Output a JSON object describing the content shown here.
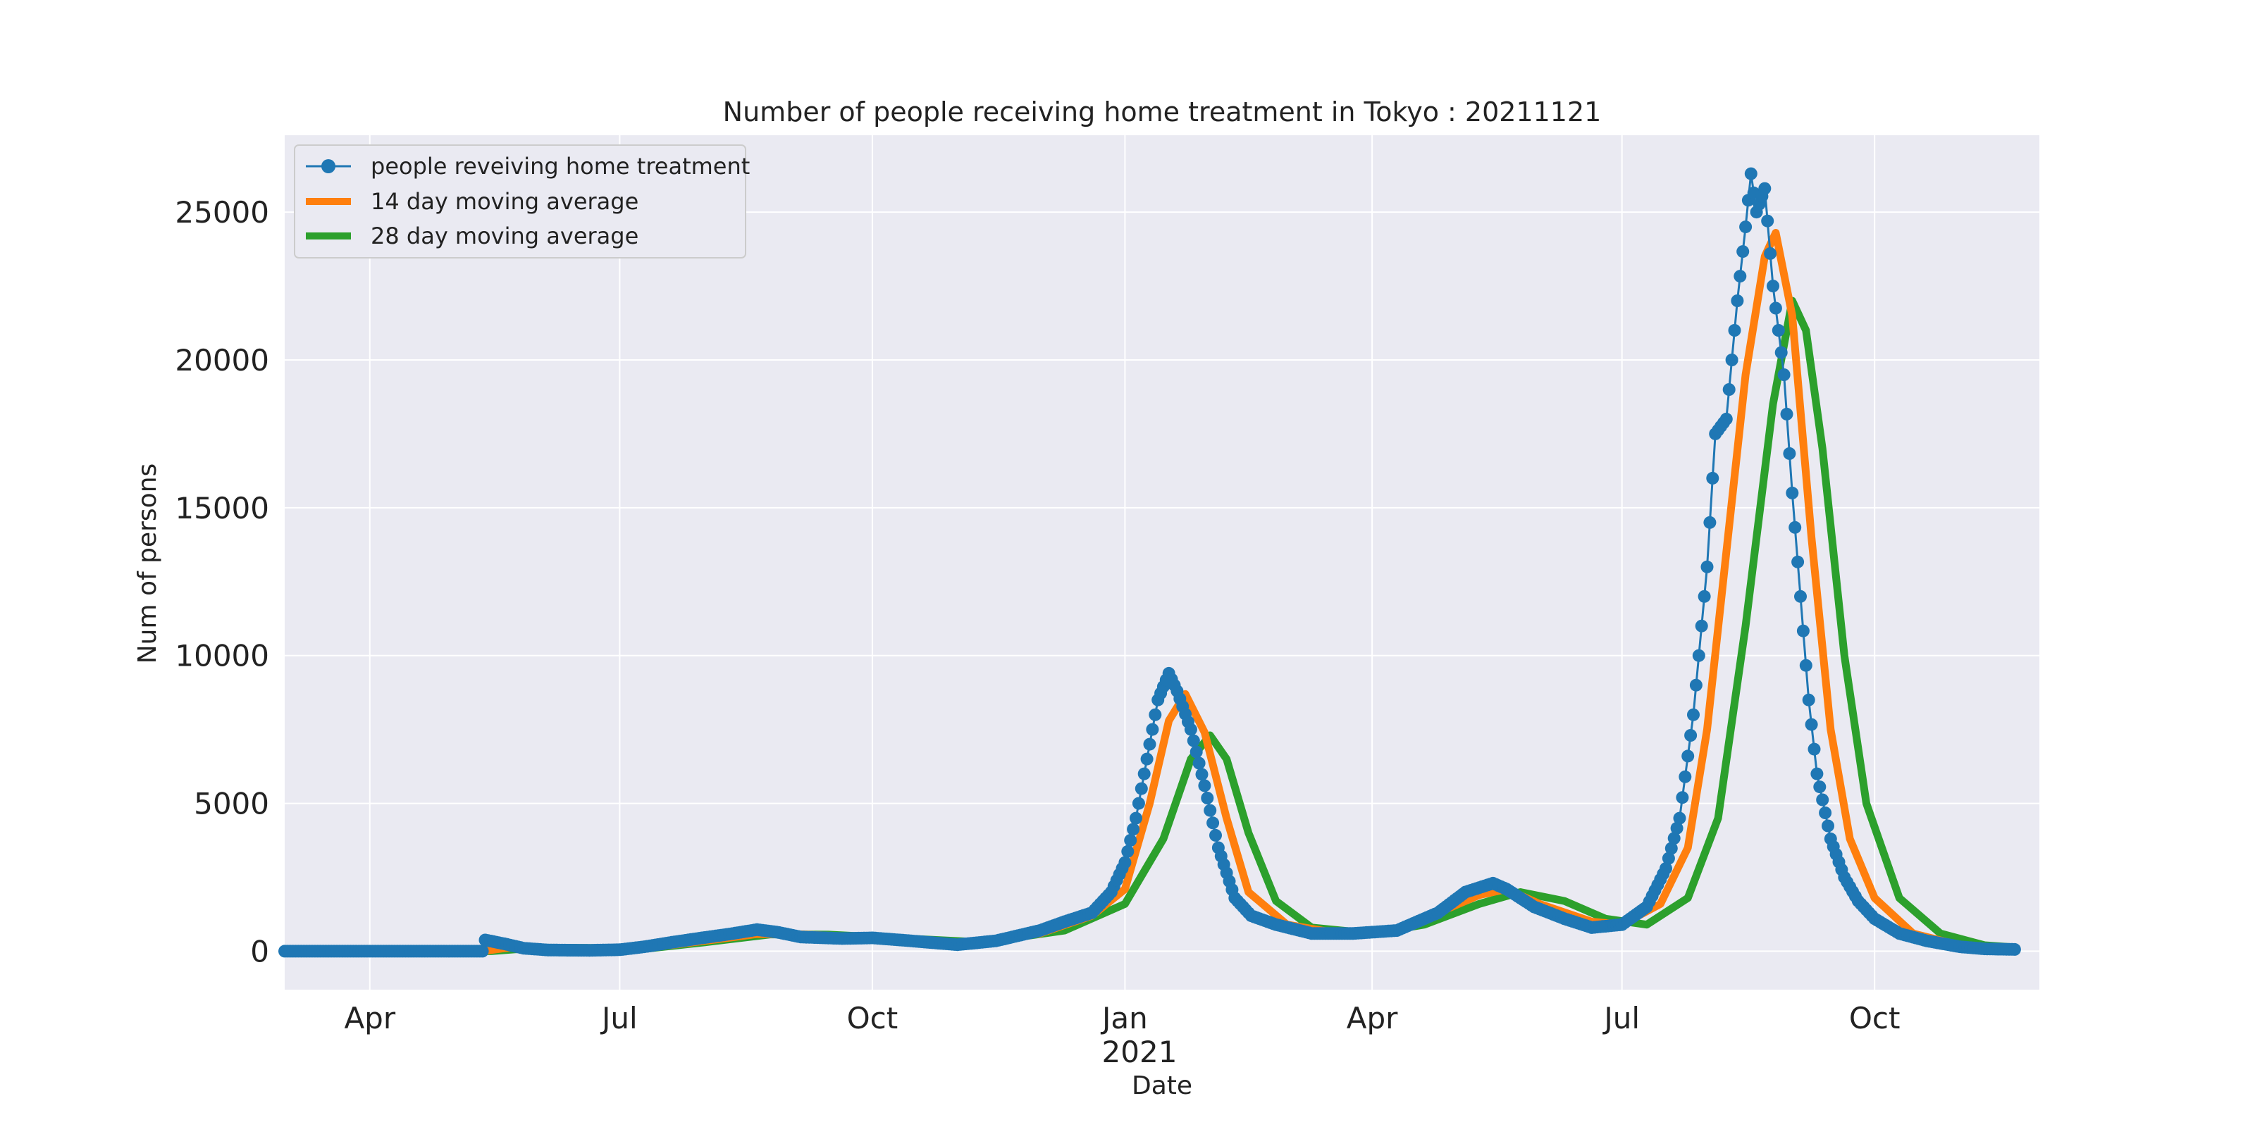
{
  "chart_data": {
    "type": "line",
    "title": "Number of people receiving home treatment in Tokyo : 20211121",
    "xlabel": "Date",
    "ylabel": "Num of persons",
    "x_range": [
      "2020-03-01",
      "2021-11-30"
    ],
    "ylim": [
      -1300,
      27600
    ],
    "grid": true,
    "legend_position": "top-left",
    "x_ticks": [
      {
        "date": "2020-04-01",
        "label": "Apr"
      },
      {
        "date": "2020-07-01",
        "label": "Jul"
      },
      {
        "date": "2020-10-01",
        "label": "Oct"
      },
      {
        "date": "2021-01-01",
        "label": "Jan"
      },
      {
        "date": "2021-04-01",
        "label": "Apr"
      },
      {
        "date": "2021-07-01",
        "label": "Jul"
      },
      {
        "date": "2021-10-01",
        "label": "Oct"
      }
    ],
    "x_year_label": "2021",
    "y_ticks": [
      0,
      5000,
      10000,
      15000,
      20000,
      25000
    ],
    "series": [
      {
        "name": "people reveiving home treatment",
        "color": "#1f77b4",
        "marker": "circle",
        "points": [
          [
            "2020-03-01",
            0
          ],
          [
            "2020-04-15",
            0
          ],
          [
            "2020-05-12",
            0
          ],
          [
            "2020-05-13",
            380
          ],
          [
            "2020-05-20",
            250
          ],
          [
            "2020-05-27",
            100
          ],
          [
            "2020-06-05",
            40
          ],
          [
            "2020-06-20",
            30
          ],
          [
            "2020-07-01",
            50
          ],
          [
            "2020-07-10",
            150
          ],
          [
            "2020-07-20",
            300
          ],
          [
            "2020-07-31",
            450
          ],
          [
            "2020-08-10",
            580
          ],
          [
            "2020-08-20",
            730
          ],
          [
            "2020-08-27",
            650
          ],
          [
            "2020-09-05",
            480
          ],
          [
            "2020-09-20",
            430
          ],
          [
            "2020-10-01",
            450
          ],
          [
            "2020-10-15",
            350
          ],
          [
            "2020-11-01",
            220
          ],
          [
            "2020-11-15",
            350
          ],
          [
            "2020-12-01",
            700
          ],
          [
            "2020-12-10",
            1000
          ],
          [
            "2020-12-20",
            1300
          ],
          [
            "2020-12-27",
            2000
          ],
          [
            "2021-01-01",
            3000
          ],
          [
            "2021-01-05",
            4500
          ],
          [
            "2021-01-09",
            6500
          ],
          [
            "2021-01-13",
            8500
          ],
          [
            "2021-01-17",
            9400
          ],
          [
            "2021-01-20",
            8800
          ],
          [
            "2021-01-25",
            7500
          ],
          [
            "2021-01-30",
            5600
          ],
          [
            "2021-02-04",
            3500
          ],
          [
            "2021-02-10",
            1800
          ],
          [
            "2021-02-16",
            1200
          ],
          [
            "2021-02-25",
            900
          ],
          [
            "2021-03-10",
            600
          ],
          [
            "2021-03-25",
            600
          ],
          [
            "2021-04-10",
            700
          ],
          [
            "2021-04-25",
            1300
          ],
          [
            "2021-05-05",
            2000
          ],
          [
            "2021-05-15",
            2300
          ],
          [
            "2021-05-20",
            2100
          ],
          [
            "2021-05-30",
            1500
          ],
          [
            "2021-06-10",
            1100
          ],
          [
            "2021-06-20",
            800
          ],
          [
            "2021-07-01",
            900
          ],
          [
            "2021-07-10",
            1500
          ],
          [
            "2021-07-17",
            2800
          ],
          [
            "2021-07-22",
            4500
          ],
          [
            "2021-07-27",
            8000
          ],
          [
            "2021-08-01",
            13000
          ],
          [
            "2021-08-04",
            17500
          ],
          [
            "2021-08-08",
            18000
          ],
          [
            "2021-08-12",
            22000
          ],
          [
            "2021-08-15",
            24500
          ],
          [
            "2021-08-17",
            26300
          ],
          [
            "2021-08-19",
            25000
          ],
          [
            "2021-08-22",
            25800
          ],
          [
            "2021-08-25",
            22500
          ],
          [
            "2021-08-29",
            19500
          ],
          [
            "2021-09-01",
            15500
          ],
          [
            "2021-09-04",
            12000
          ],
          [
            "2021-09-07",
            8500
          ],
          [
            "2021-09-10",
            6000
          ],
          [
            "2021-09-15",
            3800
          ],
          [
            "2021-09-20",
            2500
          ],
          [
            "2021-09-25",
            1700
          ],
          [
            "2021-10-01",
            1100
          ],
          [
            "2021-10-10",
            600
          ],
          [
            "2021-10-20",
            350
          ],
          [
            "2021-11-01",
            150
          ],
          [
            "2021-11-10",
            80
          ],
          [
            "2021-11-21",
            60
          ]
        ]
      },
      {
        "name": "14 day moving average",
        "color": "#ff7f0e",
        "points": [
          [
            "2020-03-14",
            0
          ],
          [
            "2020-05-12",
            0
          ],
          [
            "2020-05-20",
            100
          ],
          [
            "2020-05-27",
            160
          ],
          [
            "2020-06-10",
            90
          ],
          [
            "2020-07-01",
            40
          ],
          [
            "2020-07-15",
            150
          ],
          [
            "2020-08-01",
            350
          ],
          [
            "2020-08-20",
            580
          ],
          [
            "2020-09-05",
            570
          ],
          [
            "2020-10-01",
            450
          ],
          [
            "2020-11-01",
            280
          ],
          [
            "2020-12-01",
            600
          ],
          [
            "2020-12-20",
            1200
          ],
          [
            "2021-01-01",
            2100
          ],
          [
            "2021-01-10",
            5000
          ],
          [
            "2021-01-17",
            7800
          ],
          [
            "2021-01-23",
            8700
          ],
          [
            "2021-01-30",
            7400
          ],
          [
            "2021-02-07",
            4500
          ],
          [
            "2021-02-15",
            2000
          ],
          [
            "2021-03-01",
            900
          ],
          [
            "2021-03-20",
            600
          ],
          [
            "2021-04-10",
            700
          ],
          [
            "2021-04-25",
            1300
          ],
          [
            "2021-05-10",
            1900
          ],
          [
            "2021-05-20",
            2100
          ],
          [
            "2021-06-01",
            1600
          ],
          [
            "2021-06-20",
            1000
          ],
          [
            "2021-07-01",
            900
          ],
          [
            "2021-07-15",
            1600
          ],
          [
            "2021-07-25",
            3500
          ],
          [
            "2021-08-01",
            7500
          ],
          [
            "2021-08-08",
            13500
          ],
          [
            "2021-08-15",
            19500
          ],
          [
            "2021-08-22",
            23500
          ],
          [
            "2021-08-26",
            24300
          ],
          [
            "2021-09-01",
            21500
          ],
          [
            "2021-09-08",
            14000
          ],
          [
            "2021-09-15",
            7500
          ],
          [
            "2021-09-22",
            3800
          ],
          [
            "2021-10-01",
            1800
          ],
          [
            "2021-10-15",
            600
          ],
          [
            "2021-11-01",
            200
          ],
          [
            "2021-11-21",
            80
          ]
        ]
      },
      {
        "name": "28 day moving average",
        "color": "#2ca02c",
        "points": [
          [
            "2020-03-28",
            0
          ],
          [
            "2020-05-15",
            0
          ],
          [
            "2020-06-01",
            120
          ],
          [
            "2020-06-20",
            110
          ],
          [
            "2020-07-10",
            80
          ],
          [
            "2020-08-01",
            300
          ],
          [
            "2020-08-25",
            570
          ],
          [
            "2020-09-15",
            560
          ],
          [
            "2020-10-15",
            420
          ],
          [
            "2020-11-10",
            300
          ],
          [
            "2020-12-10",
            700
          ],
          [
            "2021-01-01",
            1600
          ],
          [
            "2021-01-15",
            3800
          ],
          [
            "2021-01-25",
            6500
          ],
          [
            "2021-02-01",
            7300
          ],
          [
            "2021-02-07",
            6500
          ],
          [
            "2021-02-15",
            4000
          ],
          [
            "2021-02-25",
            1700
          ],
          [
            "2021-03-10",
            800
          ],
          [
            "2021-04-01",
            600
          ],
          [
            "2021-04-20",
            900
          ],
          [
            "2021-05-10",
            1600
          ],
          [
            "2021-05-25",
            2000
          ],
          [
            "2021-06-10",
            1700
          ],
          [
            "2021-06-25",
            1100
          ],
          [
            "2021-07-10",
            900
          ],
          [
            "2021-07-25",
            1800
          ],
          [
            "2021-08-05",
            4500
          ],
          [
            "2021-08-15",
            11000
          ],
          [
            "2021-08-25",
            18500
          ],
          [
            "2021-09-01",
            22000
          ],
          [
            "2021-09-06",
            21000
          ],
          [
            "2021-09-12",
            17000
          ],
          [
            "2021-09-20",
            10000
          ],
          [
            "2021-09-28",
            5000
          ],
          [
            "2021-10-10",
            1800
          ],
          [
            "2021-10-25",
            600
          ],
          [
            "2021-11-10",
            200
          ],
          [
            "2021-11-21",
            130
          ]
        ]
      }
    ]
  }
}
